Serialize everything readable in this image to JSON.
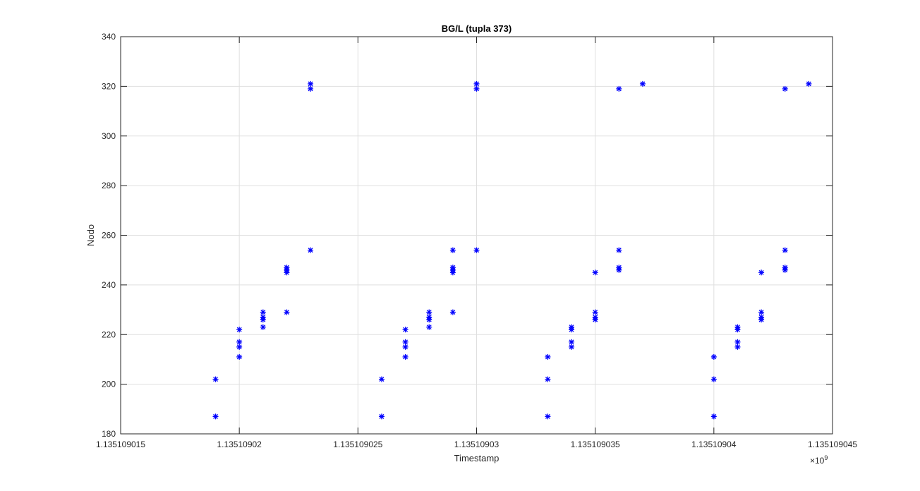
{
  "chart_data": {
    "type": "scatter",
    "title": "BG/L (tupla 373)",
    "xlabel": "Timestamp",
    "ylabel": "Nodo",
    "x_exponent_label": "×10",
    "x_exponent_power": "9",
    "xlim": [
      1.135109015,
      1.135109045
    ],
    "ylim": [
      180,
      340
    ],
    "xticks": [
      1.135109015,
      1.13510902,
      1.135109025,
      1.13510903,
      1.135109035,
      1.13510904,
      1.135109045
    ],
    "xtick_labels": [
      "1.135109015",
      "1.13510902",
      "1.135109025",
      "1.13510903",
      "1.135109035",
      "1.13510904",
      "1.135109045"
    ],
    "yticks": [
      180,
      200,
      220,
      240,
      260,
      280,
      300,
      320,
      340
    ],
    "ytick_labels": [
      "180",
      "200",
      "220",
      "240",
      "260",
      "280",
      "300",
      "320",
      "340"
    ],
    "grid": true,
    "marker": "*",
    "marker_color": "#0000ff",
    "points": [
      [
        1.135109019,
        187
      ],
      [
        1.135109019,
        202
      ],
      [
        1.13510902,
        211
      ],
      [
        1.13510902,
        215
      ],
      [
        1.13510902,
        217
      ],
      [
        1.13510902,
        222
      ],
      [
        1.135109021,
        223
      ],
      [
        1.135109021,
        226
      ],
      [
        1.135109021,
        227
      ],
      [
        1.135109021,
        229
      ],
      [
        1.135109022,
        229
      ],
      [
        1.135109022,
        245
      ],
      [
        1.135109022,
        246
      ],
      [
        1.135109022,
        247
      ],
      [
        1.135109023,
        254
      ],
      [
        1.135109023,
        319
      ],
      [
        1.135109023,
        321
      ],
      [
        1.135109026,
        187
      ],
      [
        1.135109026,
        202
      ],
      [
        1.135109027,
        211
      ],
      [
        1.135109027,
        215
      ],
      [
        1.135109027,
        217
      ],
      [
        1.135109027,
        222
      ],
      [
        1.135109028,
        223
      ],
      [
        1.135109028,
        226
      ],
      [
        1.135109028,
        227
      ],
      [
        1.135109028,
        229
      ],
      [
        1.135109029,
        229
      ],
      [
        1.135109029,
        245
      ],
      [
        1.135109029,
        246
      ],
      [
        1.135109029,
        247
      ],
      [
        1.135109029,
        254
      ],
      [
        1.13510903,
        254
      ],
      [
        1.13510903,
        319
      ],
      [
        1.13510903,
        321
      ],
      [
        1.135109033,
        187
      ],
      [
        1.135109033,
        202
      ],
      [
        1.135109033,
        211
      ],
      [
        1.135109034,
        215
      ],
      [
        1.135109034,
        217
      ],
      [
        1.135109034,
        222
      ],
      [
        1.135109034,
        223
      ],
      [
        1.135109035,
        226
      ],
      [
        1.135109035,
        227
      ],
      [
        1.135109035,
        229
      ],
      [
        1.135109035,
        245
      ],
      [
        1.135109036,
        246
      ],
      [
        1.135109036,
        247
      ],
      [
        1.135109036,
        254
      ],
      [
        1.135109036,
        319
      ],
      [
        1.135109037,
        321
      ],
      [
        1.13510904,
        187
      ],
      [
        1.13510904,
        202
      ],
      [
        1.13510904,
        211
      ],
      [
        1.135109041,
        215
      ],
      [
        1.135109041,
        217
      ],
      [
        1.135109041,
        222
      ],
      [
        1.135109041,
        223
      ],
      [
        1.135109042,
        226
      ],
      [
        1.135109042,
        227
      ],
      [
        1.135109042,
        229
      ],
      [
        1.135109042,
        245
      ],
      [
        1.135109043,
        246
      ],
      [
        1.135109043,
        247
      ],
      [
        1.135109043,
        254
      ],
      [
        1.135109043,
        319
      ],
      [
        1.135109044,
        321
      ]
    ]
  }
}
